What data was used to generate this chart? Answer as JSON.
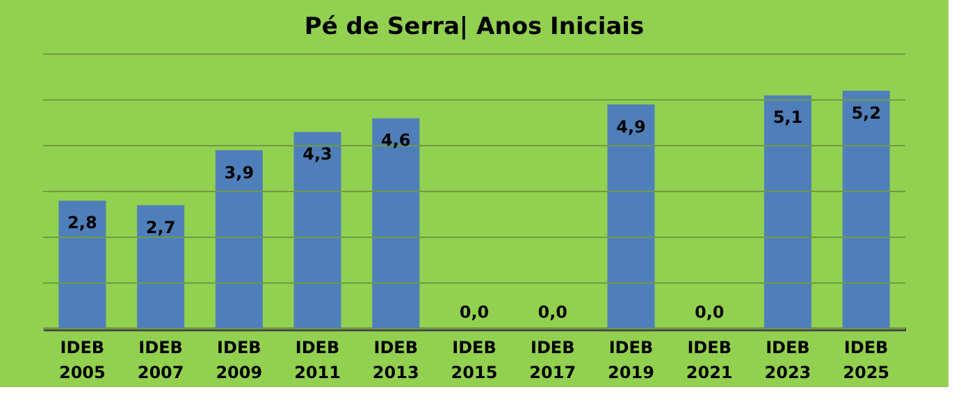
{
  "chart_data": {
    "type": "bar",
    "title": "Pé de Serra|  Anos Iniciais",
    "categories": [
      "IDEB 2005",
      "IDEB 2007",
      "IDEB 2009",
      "IDEB 2011",
      "IDEB 2013",
      "IDEB 2015",
      "IDEB 2017",
      "IDEB 2019",
      "IDEB 2021",
      "IDEB 2023",
      "IDEB 2025"
    ],
    "values": [
      2.8,
      2.7,
      3.9,
      4.3,
      4.6,
      0.0,
      0.0,
      4.9,
      0.0,
      5.1,
      5.2
    ],
    "value_labels": [
      "2,8",
      "2,7",
      "3,9",
      "4,3",
      "4,6",
      "0,0",
      "0,0",
      "4,9",
      "0,0",
      "5,1",
      "5,2"
    ],
    "color": "#4f7fba",
    "ylim": [
      0,
      6
    ],
    "yticks": [
      {
        "value": 0,
        "label": null
      },
      {
        "value": 1,
        "label": null
      },
      {
        "value": 2,
        "label": null
      },
      {
        "value": 3,
        "label": null
      },
      {
        "value": 4,
        "label": null
      },
      {
        "value": 5,
        "label": null
      },
      {
        "value": 6,
        "label": null
      }
    ],
    "grid": "y",
    "tick_labels": "x"
  }
}
